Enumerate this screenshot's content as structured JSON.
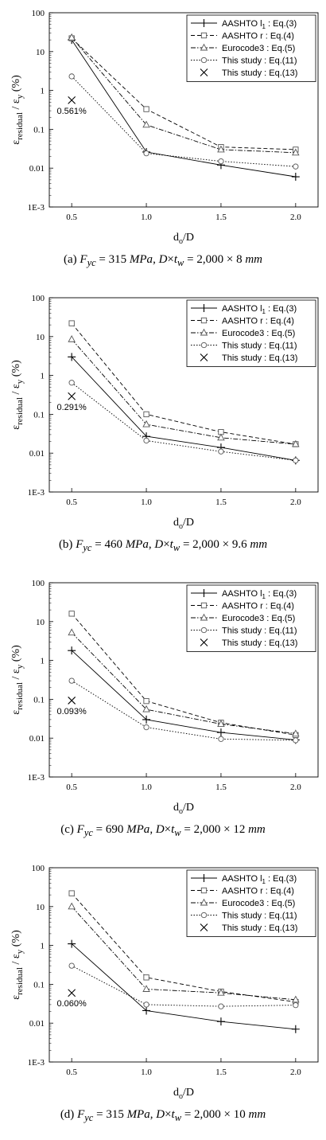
{
  "chart_data": [
    {
      "type": "line",
      "caption": {
        "label": "(a)",
        "fy": "315",
        "dims": "2,000 × 8"
      },
      "x": [
        0.5,
        1.0,
        1.5,
        2.0
      ],
      "xticks": [
        "0.5",
        "1.0",
        "1.5",
        "2.0"
      ],
      "yticks": [
        "1E-3",
        "0.01",
        "0.1",
        "1",
        "10",
        "100"
      ],
      "ylim": [
        0.001,
        100
      ],
      "yscale": "log",
      "xlabel": "do/D",
      "ylabel": "εresidual / εy (%)",
      "legend_position": "top-right",
      "series": [
        {
          "name": "AASHTO l1 : Eq.(3)",
          "style": "plus-solid",
          "values": [
            20,
            0.026,
            0.012,
            0.006
          ]
        },
        {
          "name": "AASHTO r : Eq.(4)",
          "style": "square-dashed",
          "values": [
            22,
            0.33,
            0.035,
            0.03
          ]
        },
        {
          "name": "Eurocode3 : Eq.(5)",
          "style": "triangle-dashdot",
          "values": [
            23,
            0.13,
            0.03,
            0.025
          ]
        },
        {
          "name": "This study : Eq.(11)",
          "style": "circle-dotted",
          "values": [
            2.3,
            0.024,
            0.015,
            0.011
          ]
        },
        {
          "name": "This study : Eq.(13)",
          "style": "cross",
          "values": [
            0.561,
            null,
            null,
            null
          ]
        }
      ],
      "annotation": "0.561%"
    },
    {
      "type": "line",
      "caption": {
        "label": "(b)",
        "fy": "460",
        "dims": "2,000 × 9.6"
      },
      "x": [
        0.5,
        1.0,
        1.5,
        2.0
      ],
      "xticks": [
        "0.5",
        "1.0",
        "1.5",
        "2.0"
      ],
      "yticks": [
        "1E-3",
        "0.01",
        "0.1",
        "1",
        "10",
        "100"
      ],
      "ylim": [
        0.001,
        100
      ],
      "yscale": "log",
      "xlabel": "do/D",
      "ylabel": "εresidual / εy (%)",
      "legend_position": "top-right",
      "series": [
        {
          "name": "AASHTO l1 : Eq.(3)",
          "style": "plus-solid",
          "values": [
            3.0,
            0.027,
            0.014,
            0.0065
          ]
        },
        {
          "name": "AASHTO r : Eq.(4)",
          "style": "square-dashed",
          "values": [
            22,
            0.1,
            0.035,
            0.017
          ]
        },
        {
          "name": "Eurocode3 : Eq.(5)",
          "style": "triangle-dashdot",
          "values": [
            8.5,
            0.055,
            0.025,
            0.017
          ]
        },
        {
          "name": "This study : Eq.(11)",
          "style": "circle-dotted",
          "values": [
            0.65,
            0.021,
            0.011,
            0.0065
          ]
        },
        {
          "name": "This study : Eq.(13)",
          "style": "cross",
          "values": [
            0.291,
            null,
            null,
            null
          ]
        }
      ],
      "annotation": "0.291%"
    },
    {
      "type": "line",
      "caption": {
        "label": "(c)",
        "fy": "690",
        "dims": "2,000 × 12"
      },
      "x": [
        0.5,
        1.0,
        1.5,
        2.0
      ],
      "xticks": [
        "0.5",
        "1.0",
        "1.5",
        "2.0"
      ],
      "yticks": [
        "1E-3",
        "0.01",
        "0.1",
        "1",
        "10",
        "100"
      ],
      "ylim": [
        0.001,
        100
      ],
      "yscale": "log",
      "xlabel": "do/D",
      "ylabel": "εresidual / εy (%)",
      "legend_position": "top-right",
      "series": [
        {
          "name": "AASHTO l1 : Eq.(3)",
          "style": "plus-solid",
          "values": [
            1.8,
            0.03,
            0.014,
            0.009
          ]
        },
        {
          "name": "AASHTO r : Eq.(4)",
          "style": "square-dashed",
          "values": [
            16,
            0.09,
            0.025,
            0.012
          ]
        },
        {
          "name": "Eurocode3 : Eq.(5)",
          "style": "triangle-dashdot",
          "values": [
            5.2,
            0.055,
            0.023,
            0.013
          ]
        },
        {
          "name": "This study : Eq.(11)",
          "style": "circle-dotted",
          "values": [
            0.3,
            0.019,
            0.0095,
            0.0088
          ]
        },
        {
          "name": "This study : Eq.(13)",
          "style": "cross",
          "values": [
            0.093,
            null,
            null,
            null
          ]
        }
      ],
      "annotation": "0.093%"
    },
    {
      "type": "line",
      "caption": {
        "label": "(d)",
        "fy": "315",
        "dims": "2,000 × 10"
      },
      "x": [
        0.5,
        1.0,
        1.5,
        2.0
      ],
      "xticks": [
        "0.5",
        "1.0",
        "1.5",
        "2.0"
      ],
      "yticks": [
        "1E-3",
        "0.01",
        "0.1",
        "1",
        "10",
        "100"
      ],
      "ylim": [
        0.001,
        100
      ],
      "yscale": "log",
      "xlabel": "do/D",
      "ylabel": "εresidual / εy (%)",
      "legend_position": "top-right",
      "series": [
        {
          "name": "AASHTO l1 : Eq.(3)",
          "style": "plus-solid",
          "values": [
            1.1,
            0.021,
            0.011,
            0.007
          ]
        },
        {
          "name": "AASHTO r : Eq.(4)",
          "style": "square-dashed",
          "values": [
            22,
            0.15,
            0.065,
            0.035
          ]
        },
        {
          "name": "Eurocode3 : Eq.(5)",
          "style": "triangle-dashdot",
          "values": [
            10,
            0.075,
            0.06,
            0.04
          ]
        },
        {
          "name": "This study : Eq.(11)",
          "style": "circle-dotted",
          "values": [
            0.3,
            0.03,
            0.027,
            0.029
          ]
        },
        {
          "name": "This study : Eq.(13)",
          "style": "cross",
          "values": [
            0.06,
            null,
            null,
            null
          ]
        }
      ],
      "annotation": "0.060%"
    }
  ]
}
